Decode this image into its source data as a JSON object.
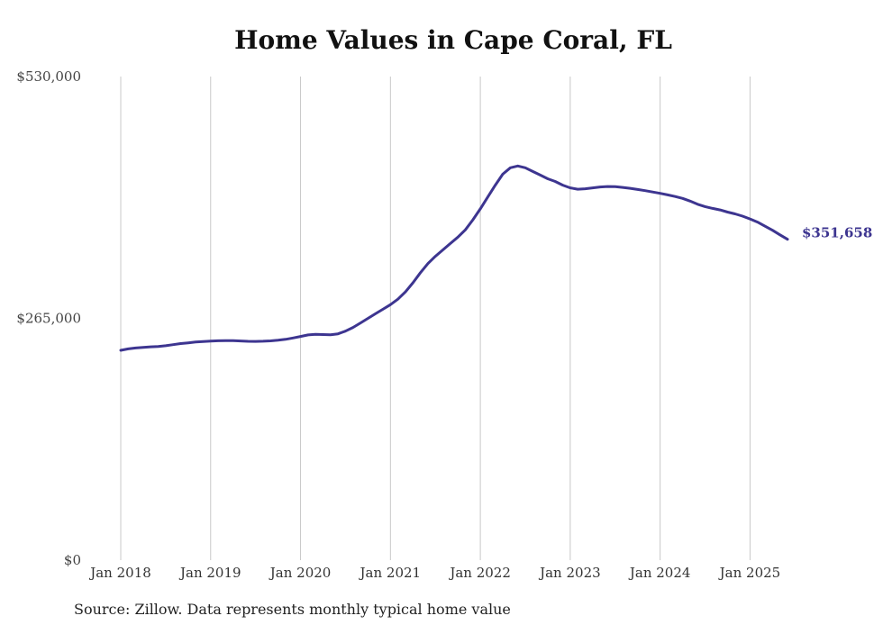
{
  "chart_data": {
    "type": "line",
    "title": "Home Values in Cape Coral, FL",
    "source_note": "Source: Zillow. Data represents monthly typical home value",
    "xlabel": "",
    "ylabel": "",
    "x_tick_labels": [
      "Jan 2018",
      "Jan 2019",
      "Jan 2020",
      "Jan 2021",
      "Jan 2022",
      "Jan 2023",
      "Jan 2024",
      "Jan 2025"
    ],
    "y_tick_labels": [
      "$0",
      "$265,000",
      "$530,000"
    ],
    "ylim": [
      0,
      530000
    ],
    "xlim": [
      "2018-01",
      "2025-06"
    ],
    "grid": "vertical",
    "line_color": "#3d3590",
    "end_label": "$351,658",
    "series": [
      {
        "x": [
          "2018-01",
          "2018-02",
          "2018-03",
          "2018-04",
          "2018-05",
          "2018-06",
          "2018-07",
          "2018-08",
          "2018-09",
          "2018-10",
          "2018-11",
          "2018-12",
          "2019-01",
          "2019-02",
          "2019-03",
          "2019-04",
          "2019-05",
          "2019-06",
          "2019-07",
          "2019-08",
          "2019-09",
          "2019-10",
          "2019-11",
          "2019-12",
          "2020-01",
          "2020-02",
          "2020-03",
          "2020-04",
          "2020-05",
          "2020-06",
          "2020-07",
          "2020-08",
          "2020-09",
          "2020-10",
          "2020-11",
          "2020-12",
          "2021-01",
          "2021-02",
          "2021-03",
          "2021-04",
          "2021-05",
          "2021-06",
          "2021-07",
          "2021-08",
          "2021-09",
          "2021-10",
          "2021-11",
          "2021-12",
          "2022-01",
          "2022-02",
          "2022-03",
          "2022-04",
          "2022-05",
          "2022-06",
          "2022-07",
          "2022-08",
          "2022-09",
          "2022-10",
          "2022-11",
          "2022-12",
          "2023-01",
          "2023-02",
          "2023-03",
          "2023-04",
          "2023-05",
          "2023-06",
          "2023-07",
          "2023-08",
          "2023-09",
          "2023-10",
          "2023-11",
          "2023-12",
          "2024-01",
          "2024-02",
          "2024-03",
          "2024-04",
          "2024-05",
          "2024-06",
          "2024-07",
          "2024-08",
          "2024-09",
          "2024-10",
          "2024-11",
          "2024-12",
          "2025-01",
          "2025-02",
          "2025-03",
          "2025-04",
          "2025-05",
          "2025-06"
        ],
        "values": [
          230000,
          231500,
          232500,
          233200,
          233800,
          234200,
          235000,
          236200,
          237400,
          238200,
          239000,
          239600,
          240000,
          240400,
          240600,
          240500,
          240200,
          239800,
          239700,
          239900,
          240300,
          241000,
          242000,
          243500,
          245200,
          246800,
          247400,
          247200,
          247000,
          248000,
          251000,
          255000,
          260000,
          265000,
          270000,
          275000,
          280000,
          286000,
          294000,
          304000,
          315000,
          325000,
          333000,
          340000,
          347000,
          354000,
          362000,
          373000,
          385000,
          398000,
          411000,
          423000,
          430000,
          432000,
          430000,
          426000,
          422000,
          418000,
          415000,
          411000,
          408000,
          406500,
          407000,
          408000,
          409000,
          409500,
          409300,
          408500,
          407500,
          406200,
          405000,
          403500,
          402000,
          400300,
          398500,
          396500,
          393500,
          390000,
          387500,
          385500,
          383800,
          381500,
          379500,
          377000,
          374000,
          370500,
          366000,
          361500,
          356500,
          351658
        ]
      }
    ]
  }
}
